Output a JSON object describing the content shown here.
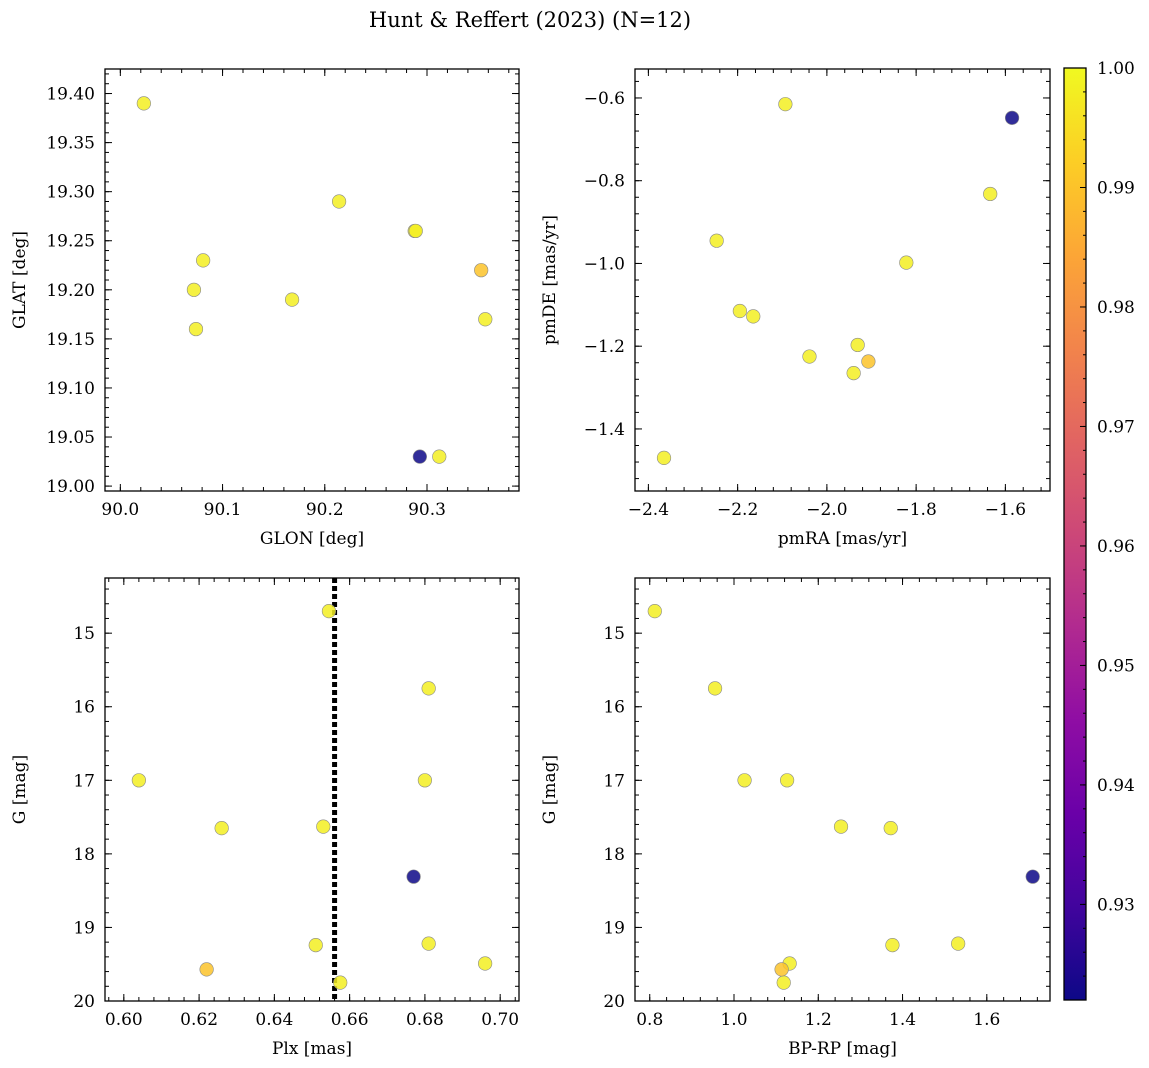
{
  "figure": {
    "title": "Hunt & Reffert (2023) (N=12)"
  },
  "colorbar": {
    "colormap": "plasma",
    "range": [
      0.922,
      1.0
    ],
    "ticks": [
      0.93,
      0.94,
      0.95,
      0.96,
      0.97,
      0.98,
      0.99,
      1.0
    ],
    "tick_labels": [
      "0.93",
      "0.94",
      "0.95",
      "0.96",
      "0.97",
      "0.98",
      "0.99",
      "1.00"
    ]
  },
  "chart_data": [
    {
      "type": "scatter",
      "panel": "top-left",
      "xlabel": "GLON [deg]",
      "ylabel": "GLAT [deg]",
      "xlim": [
        89.985,
        90.39
      ],
      "ylim": [
        18.995,
        19.425
      ],
      "xticks": [
        90.0,
        90.1,
        90.2,
        90.3
      ],
      "xtick_labels": [
        "90.0",
        "90.1",
        "90.2",
        "90.3"
      ],
      "yticks": [
        19.0,
        19.05,
        19.1,
        19.15,
        19.2,
        19.25,
        19.3,
        19.35,
        19.4
      ],
      "ytick_labels": [
        "19.00",
        "19.05",
        "19.10",
        "19.15",
        "19.20",
        "19.25",
        "19.30",
        "19.35",
        "19.40"
      ],
      "x": [
        90.023,
        90.072,
        90.074,
        90.081,
        90.168,
        90.214,
        90.288,
        90.289,
        90.293,
        90.312,
        90.353,
        90.357
      ],
      "y": [
        19.39,
        19.2,
        19.16,
        19.23,
        19.19,
        19.29,
        19.26,
        19.26,
        19.03,
        19.03,
        19.22,
        19.17
      ],
      "color": [
        0.998,
        0.998,
        0.998,
        0.998,
        0.998,
        0.998,
        0.998,
        0.998,
        0.922,
        0.998,
        0.99,
        0.998
      ]
    },
    {
      "type": "scatter",
      "panel": "top-right",
      "xlabel": "pmRA [mas/yr]",
      "ylabel": "pmDE [mas/yr]",
      "xlim": [
        -2.43,
        -1.5
      ],
      "ylim": [
        -1.55,
        -0.53
      ],
      "xticks": [
        -2.4,
        -2.2,
        -2.0,
        -1.8,
        -1.6
      ],
      "xtick_labels": [
        "−2.4",
        "−2.2",
        "−2.0",
        "−1.8",
        "−1.6"
      ],
      "yticks": [
        -1.4,
        -1.2,
        -1.0,
        -0.8,
        -0.6
      ],
      "ytick_labels": [
        "−1.4",
        "−1.2",
        "−1.0",
        "−0.8",
        "−0.6"
      ],
      "x": [
        -2.365,
        -2.247,
        -2.195,
        -2.165,
        -2.093,
        -2.039,
        -1.94,
        -1.931,
        -1.907,
        -1.822,
        -1.634,
        -1.585
      ],
      "y": [
        -1.47,
        -0.945,
        -1.115,
        -1.128,
        -0.615,
        -1.225,
        -1.265,
        -1.197,
        -1.237,
        -0.998,
        -0.832,
        -0.648
      ],
      "color": [
        0.998,
        0.998,
        0.998,
        0.998,
        0.998,
        0.998,
        0.998,
        0.998,
        0.99,
        0.998,
        0.998,
        0.922
      ]
    },
    {
      "type": "scatter",
      "panel": "bottom-left",
      "xlabel": "Plx [mas]",
      "ylabel": "G [mag]",
      "xlim": [
        0.595,
        0.705
      ],
      "ylim": [
        20.0,
        14.25
      ],
      "xticks": [
        0.6,
        0.62,
        0.64,
        0.66,
        0.68,
        0.7
      ],
      "xtick_labels": [
        "0.60",
        "0.62",
        "0.64",
        "0.66",
        "0.68",
        "0.70"
      ],
      "yticks": [
        15,
        16,
        17,
        18,
        19,
        20
      ],
      "ytick_labels": [
        "15",
        "16",
        "17",
        "18",
        "19",
        "20"
      ],
      "vline": {
        "x": 0.656,
        "style": "dotted"
      },
      "x": [
        0.604,
        0.626,
        0.622,
        0.651,
        0.653,
        0.6545,
        0.6575,
        0.677,
        0.68,
        0.681,
        0.681,
        0.696
      ],
      "y": [
        17.0,
        17.65,
        19.57,
        19.24,
        17.63,
        14.7,
        19.75,
        18.31,
        17.0,
        15.75,
        19.22,
        19.49
      ],
      "color": [
        0.998,
        0.998,
        0.99,
        0.998,
        0.998,
        0.998,
        0.998,
        0.922,
        0.998,
        0.998,
        0.998,
        0.998
      ]
    },
    {
      "type": "scatter",
      "panel": "bottom-right",
      "xlabel": "BP-RP [mag]",
      "ylabel": "G [mag]",
      "xlim": [
        0.765,
        1.75
      ],
      "ylim": [
        20.0,
        14.25
      ],
      "xticks": [
        0.8,
        1.0,
        1.2,
        1.4,
        1.6
      ],
      "xtick_labels": [
        "0.8",
        "1.0",
        "1.2",
        "1.4",
        "1.6"
      ],
      "yticks": [
        15,
        16,
        17,
        18,
        19,
        20
      ],
      "ytick_labels": [
        "15",
        "16",
        "17",
        "18",
        "19",
        "20"
      ],
      "x": [
        0.812,
        0.955,
        1.025,
        1.113,
        1.118,
        1.126,
        1.132,
        1.254,
        1.372,
        1.376,
        1.532,
        1.709
      ],
      "y": [
        14.7,
        15.75,
        17.0,
        19.57,
        19.75,
        17.0,
        19.49,
        17.63,
        17.65,
        19.24,
        19.22,
        18.31
      ],
      "color": [
        0.998,
        0.998,
        0.998,
        0.99,
        0.998,
        0.998,
        0.998,
        0.998,
        0.998,
        0.998,
        0.998,
        0.922
      ]
    }
  ]
}
